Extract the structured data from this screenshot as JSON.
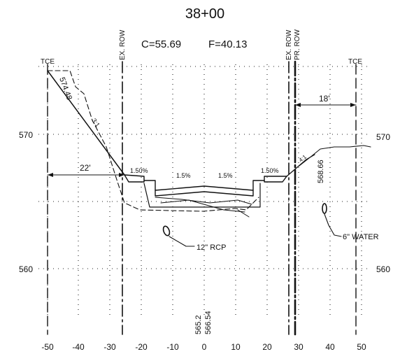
{
  "station": "38+00",
  "cut_fill": {
    "cut": "C=55.69",
    "fill": "F=40.13"
  },
  "row_labels": {
    "ex_row_left": "EX. ROW",
    "ex_row_right": "EX. ROW",
    "pr_row": "PR. ROW"
  },
  "tce": {
    "left": "TCE",
    "right": "TCE"
  },
  "x_ticks": [
    "-50",
    "-40",
    "-30",
    "-20",
    "-10",
    "0",
    "10",
    "20",
    "30",
    "40",
    "50"
  ],
  "y_ticks_left": [
    "570",
    "560"
  ],
  "y_ticks_right": [
    "570",
    "560"
  ],
  "dimensions": {
    "left_width": "22'",
    "right_width": "18'"
  },
  "slope_labels": {
    "left_side_slope": "3:1",
    "right_side_slope": "4:1",
    "left_shoulder": "1.50%",
    "right_shoulder": "1.50%",
    "left_lane": "1.5%",
    "right_lane": "1.5%"
  },
  "elevations": {
    "left_tie": "574.48",
    "right_tie": "568.66",
    "centerline_a": "565.2",
    "centerline_b": "566.54"
  },
  "utilities": {
    "pipe": "12\" RCP",
    "water": "6\" WATER"
  }
}
